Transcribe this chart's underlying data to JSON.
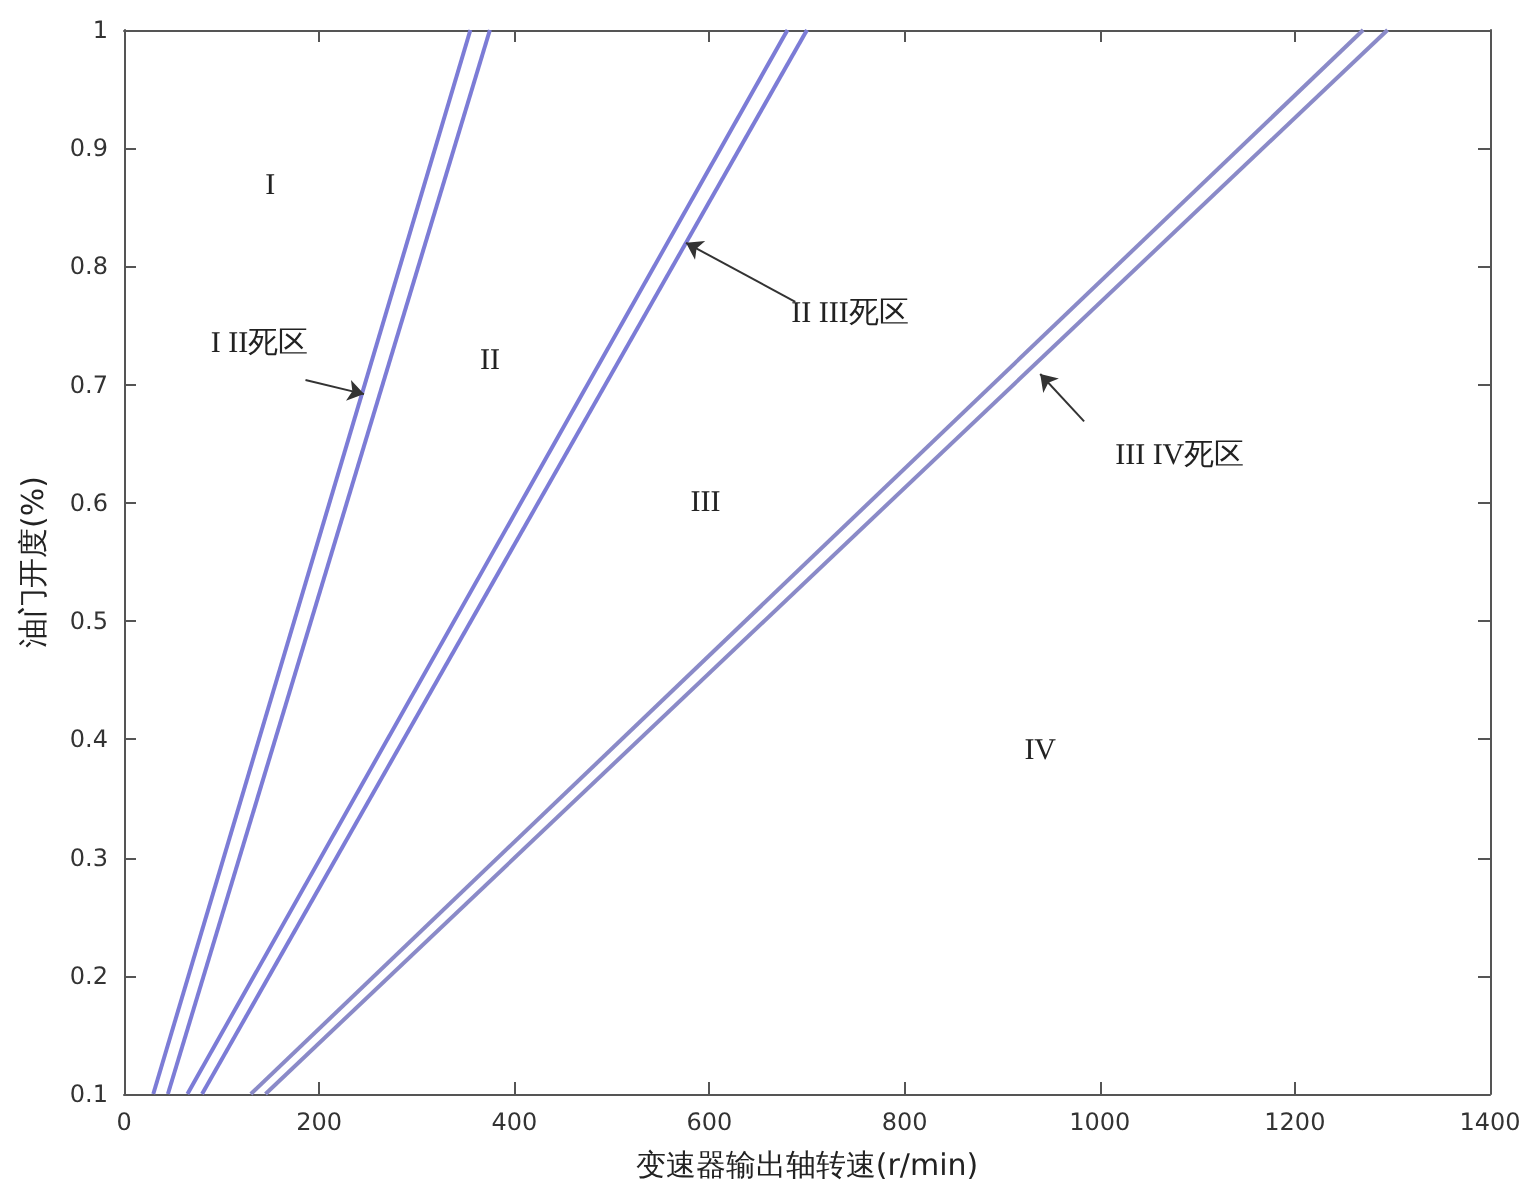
{
  "chart_data": {
    "type": "line",
    "xlabel": "变速器输出轴转速(r/min)",
    "ylabel": "油门开度(%)",
    "series": [
      {
        "color": "#7c7cd6",
        "x": [
          30,
          355
        ],
        "values": [
          0.1,
          1
        ]
      },
      {
        "color": "#7c7cd6",
        "x": [
          45,
          375
        ],
        "values": [
          0.1,
          1
        ]
      },
      {
        "color": "#7c7cd6",
        "x": [
          65,
          680
        ],
        "values": [
          0.1,
          1
        ]
      },
      {
        "color": "#7c7cd6",
        "x": [
          80,
          700
        ],
        "values": [
          0.1,
          1
        ]
      },
      {
        "color": "#8a8ac8",
        "x": [
          130,
          1270
        ],
        "values": [
          0.1,
          1
        ]
      },
      {
        "color": "#8a8ac8",
        "x": [
          145,
          1295
        ],
        "values": [
          0.1,
          1
        ]
      }
    ],
    "xlim": [
      0,
      1400
    ],
    "xticks": [
      0,
      200,
      400,
      600,
      800,
      1000,
      1200,
      1400
    ],
    "ylim": [
      0.1,
      1
    ],
    "yticks": [
      0.1,
      0.2,
      0.3,
      0.4,
      0.5,
      0.6,
      0.7,
      0.8,
      0.9,
      1
    ],
    "grid": false,
    "marker": "none",
    "line_style": "solid",
    "annotations": [
      "I",
      "II",
      "III",
      "IV",
      {
        "text": "I II死区",
        "x": 246,
        "y": 0.692
      },
      {
        "text": "II III死区",
        "x": 576,
        "y": 0.82
      },
      {
        "text": "III IV死区",
        "x": 939,
        "y": 0.709
      }
    ]
  }
}
